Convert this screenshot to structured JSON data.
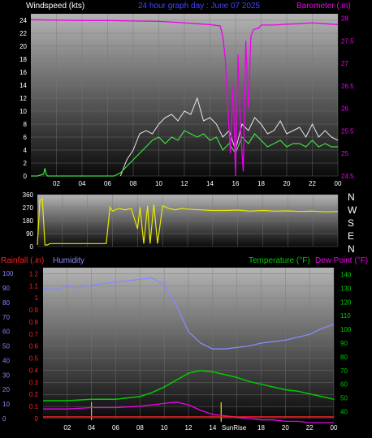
{
  "titles": {
    "windspeed": "Windspeed (kts)",
    "graph_title": "24 hour graph day : June 07 2025",
    "barometer": "Barometer (.in)",
    "rainfall": "Rainfall (.in)",
    "humidity": "Humidity",
    "temperature": "Temperature (°F)",
    "dewpoint": "Dew Point (°F)",
    "sunrise": "SunRise"
  },
  "colors": {
    "wind": "#cfe8cf",
    "wind_light": "#44dd44",
    "barometer": "#ee00ee",
    "direction": "#e8e800",
    "rain": "#ff2020",
    "humidity": "#8888ff",
    "temperature": "#00cc00",
    "dewpoint": "#ee00ee",
    "sunrise_line": "#e8e800",
    "title_blue": "#4444ff"
  },
  "compass": [
    "N",
    "W",
    "S",
    "E",
    "N"
  ],
  "chart_data": [
    {
      "type": "line",
      "name": "wind-barometer",
      "x_ticks": [
        "02",
        "04",
        "06",
        "08",
        "10",
        "12",
        "14",
        "16",
        "18",
        "20",
        "22",
        "00"
      ],
      "y_left_ticks": [
        "0",
        "2",
        "4",
        "6",
        "8",
        "10",
        "12",
        "14",
        "16",
        "18",
        "20",
        "22",
        "24"
      ],
      "y_left_range": [
        0,
        25
      ],
      "y_right_ticks": [
        "24.5",
        "25",
        "25.5",
        "26",
        "26.5",
        "27",
        "27.5",
        "28"
      ],
      "y_right_range": [
        24.5,
        28.1
      ],
      "series": [
        {
          "axis": "left",
          "x": [
            0,
            0.5,
            1,
            1.1,
            1.2,
            1.3,
            2,
            3,
            4,
            5,
            6,
            6.5,
            7,
            7.5,
            8,
            8.5,
            9,
            9.5,
            10,
            10.5,
            11,
            11.5,
            12,
            12.5,
            13,
            13.5,
            14,
            14.5,
            15,
            15.5,
            16,
            16.5,
            17,
            17.5,
            18,
            18.5,
            19,
            19.5,
            20,
            20.5,
            21,
            21.5,
            22,
            22.5,
            23,
            23.5,
            24
          ],
          "y": [
            0,
            0,
            0.3,
            1.2,
            0.3,
            0,
            0,
            0,
            0,
            0,
            0,
            0,
            0.5,
            1.5,
            2.5,
            3.5,
            4.5,
            5.5,
            6,
            5,
            6,
            5.5,
            7,
            6.5,
            6,
            6.5,
            5.5,
            6,
            4,
            5,
            3.5,
            6,
            5,
            6.5,
            5.5,
            4.5,
            5,
            5.5,
            4.5,
            5,
            5,
            4.5,
            5.5,
            4.5,
            5,
            4.5,
            4.5
          ]
        },
        {
          "axis": "left",
          "x": [
            7,
            7.5,
            8,
            8.5,
            9,
            9.5,
            10,
            10.5,
            11,
            11.5,
            12,
            12.5,
            13,
            13.5,
            14,
            14.5,
            15,
            15.5,
            16,
            16.5,
            17,
            17.5,
            18,
            18.5,
            19,
            19.5,
            20,
            20.5,
            21,
            21.5,
            22,
            22.5,
            23,
            23.5,
            24
          ],
          "y": [
            0,
            2.5,
            4,
            6.5,
            7,
            6.5,
            8,
            9,
            9.5,
            8.5,
            10,
            9.5,
            12,
            8.5,
            9,
            8,
            6,
            7,
            4,
            8,
            7,
            9,
            8,
            6.5,
            7,
            8.5,
            6.5,
            7,
            7.5,
            6,
            8,
            6,
            7,
            6,
            5.5
          ]
        },
        {
          "axis": "right",
          "x": [
            0,
            2,
            4,
            6,
            8,
            10,
            12,
            13,
            14,
            14.8,
            15,
            15.2,
            15.4,
            15.6,
            15.8,
            16,
            16.2,
            16.4,
            16.6,
            16.8,
            17,
            17.2,
            17.4,
            17.8,
            18,
            19,
            20,
            21,
            22,
            23,
            24
          ],
          "y": [
            27.97,
            27.96,
            27.95,
            27.95,
            27.94,
            27.93,
            27.9,
            27.88,
            27.86,
            27.83,
            27.6,
            27.1,
            26,
            25,
            26.5,
            24.5,
            27.2,
            25.5,
            24.6,
            27.5,
            26,
            27.6,
            27.75,
            27.78,
            27.85,
            27.85,
            27.87,
            27.88,
            27.9,
            27.88,
            27.86
          ]
        }
      ]
    },
    {
      "type": "line",
      "name": "wind-direction",
      "y_ticks": [
        "0",
        "90",
        "180",
        "270",
        "360"
      ],
      "y_range": [
        0,
        360
      ],
      "x": [
        0,
        0.2,
        0.4,
        0.6,
        0.8,
        1,
        1.5,
        2,
        3,
        4,
        5,
        5.5,
        5.8,
        6,
        6.5,
        7,
        7.5,
        8,
        8.2,
        8.5,
        8.8,
        9,
        9.3,
        9.6,
        10,
        10.5,
        11,
        11.5,
        12,
        13,
        14,
        15,
        16,
        17,
        18,
        19,
        20,
        21,
        22,
        23,
        24
      ],
      "values": [
        0,
        330,
        340,
        0,
        0,
        10,
        10,
        10,
        10,
        10,
        10,
        10,
        280,
        250,
        270,
        260,
        270,
        120,
        280,
        10,
        290,
        10,
        300,
        10,
        290,
        270,
        260,
        270,
        265,
        260,
        255,
        255,
        258,
        250,
        255,
        250,
        252,
        248,
        250,
        245,
        248
      ]
    },
    {
      "type": "line",
      "name": "rain-humidity-temperature",
      "y_left_ticks": [
        "0",
        "0.1",
        "0.2",
        "0.3",
        "0.4",
        "0.5",
        "0.6",
        "0.7",
        "0.8",
        "0.9",
        "1",
        "1.1",
        "1.2"
      ],
      "y_left_range": [
        0,
        1.25
      ],
      "y_humidity_ticks": [
        "0",
        "10",
        "20",
        "30",
        "40",
        "50",
        "60",
        "70",
        "80",
        "90",
        "100"
      ],
      "y_right_ticks": [
        "40",
        "50",
        "60",
        "70",
        "80",
        "90",
        "100",
        "110",
        "120",
        "130",
        "140"
      ],
      "y_right_range": [
        35,
        145
      ],
      "sunrise_hour": 14.7,
      "noon_hour": 3,
      "series": [
        {
          "axis": "humidity",
          "x": [
            0,
            1,
            2,
            3,
            4,
            5,
            6,
            7,
            8,
            9,
            10,
            11,
            12,
            13,
            14,
            15,
            16,
            17,
            18,
            19,
            20,
            21,
            22,
            23,
            24
          ],
          "y": [
            90,
            89,
            91,
            90,
            92,
            93,
            94,
            95,
            96,
            97,
            92,
            78,
            60,
            52,
            48,
            48,
            49,
            50,
            52,
            53,
            54,
            56,
            58,
            62,
            65
          ]
        },
        {
          "axis": "right",
          "x": [
            0,
            2,
            4,
            6,
            8,
            9,
            10,
            11,
            12,
            13,
            14,
            15,
            16,
            17,
            18,
            19,
            20,
            21,
            22,
            23,
            24
          ],
          "y": [
            48,
            48,
            49,
            49,
            51,
            54,
            58,
            63,
            68,
            70,
            69,
            67,
            65,
            62,
            60,
            58,
            56,
            55,
            53,
            51,
            49
          ]
        },
        {
          "axis": "right",
          "x": [
            0,
            2,
            4,
            6,
            8,
            10,
            11,
            12,
            13,
            14,
            15,
            16,
            17,
            18,
            19,
            20,
            21,
            22,
            23,
            24
          ],
          "y": [
            42,
            42,
            43,
            43,
            44,
            46,
            47,
            45,
            41,
            38,
            37,
            36,
            35,
            34,
            34,
            33,
            33,
            32,
            32,
            32
          ]
        },
        {
          "axis": "left",
          "x": [
            0,
            24
          ],
          "y": [
            0,
            0
          ]
        }
      ]
    }
  ]
}
